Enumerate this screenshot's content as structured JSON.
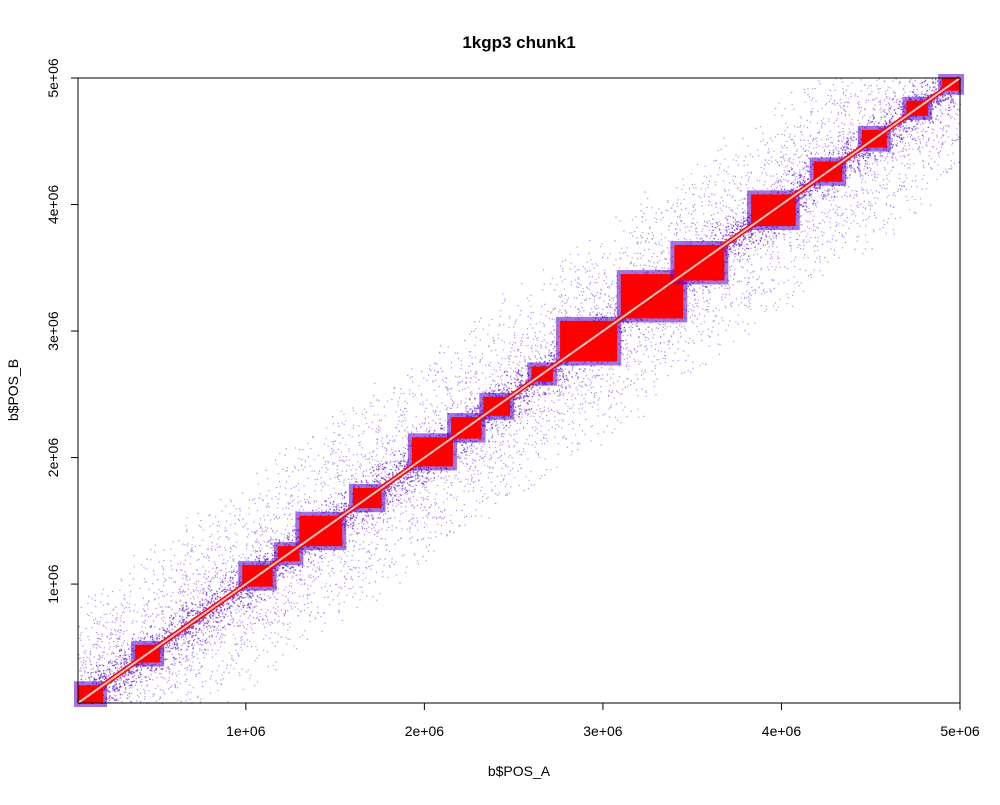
{
  "chart_data": {
    "type": "heatmap",
    "title": "1kgp3 chunk1",
    "xlabel": "b$POS_A",
    "ylabel": "b$POS_B",
    "xlim": [
      60000,
      5000000
    ],
    "ylim": [
      60000,
      5000000
    ],
    "x_ticks": [
      {
        "value": 1000000,
        "label": "1e+06"
      },
      {
        "value": 2000000,
        "label": "2e+06"
      },
      {
        "value": 3000000,
        "label": "3e+06"
      },
      {
        "value": 4000000,
        "label": "4e+06"
      },
      {
        "value": 5000000,
        "label": "5e+06"
      }
    ],
    "y_ticks": [
      {
        "value": 1000000,
        "label": "1e+06"
      },
      {
        "value": 2000000,
        "label": "2e+06"
      },
      {
        "value": 3000000,
        "label": "3e+06"
      },
      {
        "value": 4000000,
        "label": "4e+06"
      },
      {
        "value": 5000000,
        "label": "5e+06"
      }
    ],
    "grid": false,
    "colors": {
      "strong_ld": "#ff0000",
      "weak_ld": "#5500cc",
      "diagonal": "#f2c4c4",
      "axis": "#000000"
    },
    "description_points_band_halfwidth": 900000,
    "blocks": [
      {
        "start": 60000,
        "end": 200000
      },
      {
        "start": 380000,
        "end": 520000
      },
      {
        "start": 980000,
        "end": 1150000
      },
      {
        "start": 1180000,
        "end": 1300000
      },
      {
        "start": 1300000,
        "end": 1540000
      },
      {
        "start": 1600000,
        "end": 1760000
      },
      {
        "start": 1930000,
        "end": 2160000
      },
      {
        "start": 2150000,
        "end": 2320000
      },
      {
        "start": 2330000,
        "end": 2480000
      },
      {
        "start": 2600000,
        "end": 2720000
      },
      {
        "start": 2760000,
        "end": 3080000
      },
      {
        "start": 3100000,
        "end": 3450000
      },
      {
        "start": 3400000,
        "end": 3680000
      },
      {
        "start": 3830000,
        "end": 4080000
      },
      {
        "start": 4180000,
        "end": 4340000
      },
      {
        "start": 4450000,
        "end": 4590000
      },
      {
        "start": 4700000,
        "end": 4820000
      },
      {
        "start": 4900000,
        "end": 5000000
      }
    ]
  }
}
